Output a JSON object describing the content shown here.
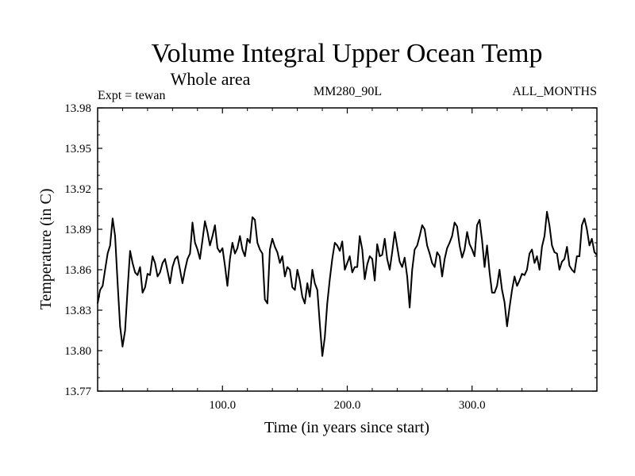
{
  "chart_data": {
    "type": "line",
    "title": "Volume Integral Upper Ocean Temp",
    "subtitle": "Whole area",
    "annotations": {
      "left": "Expt = tewan",
      "center": "MM280_90L",
      "right": "ALL_MONTHS"
    },
    "xlabel": "Time (in years since start)",
    "ylabel": "Temperature (in C)",
    "xlim": [
      0,
      400
    ],
    "ylim": [
      13.77,
      13.98
    ],
    "xticks": [
      100,
      200,
      300
    ],
    "xtick_labels": [
      "100.0",
      "200.0",
      "300.0"
    ],
    "yticks": [
      13.77,
      13.8,
      13.83,
      13.86,
      13.89,
      13.92,
      13.95,
      13.98
    ],
    "ytick_labels": [
      "13.77",
      "13.80",
      "13.83",
      "13.86",
      "13.89",
      "13.92",
      "13.95",
      "13.98"
    ],
    "grid": false,
    "series": [
      {
        "name": "tewan",
        "x": [
          0,
          2,
          4,
          6,
          8,
          10,
          12,
          14,
          16,
          18,
          20,
          22,
          24,
          26,
          28,
          30,
          32,
          34,
          36,
          38,
          40,
          42,
          44,
          46,
          48,
          50,
          52,
          54,
          56,
          58,
          60,
          62,
          64,
          66,
          68,
          70,
          72,
          74,
          76,
          78,
          80,
          82,
          84,
          86,
          88,
          90,
          92,
          94,
          96,
          98,
          100,
          102,
          104,
          106,
          108,
          110,
          112,
          114,
          116,
          118,
          120,
          122,
          124,
          126,
          128,
          130,
          132,
          134,
          136,
          138,
          140,
          142,
          144,
          146,
          148,
          150,
          152,
          154,
          156,
          158,
          160,
          162,
          164,
          166,
          168,
          170,
          172,
          174,
          176,
          178,
          180,
          182,
          184,
          186,
          188,
          190,
          192,
          194,
          196,
          198,
          200,
          202,
          204,
          206,
          208,
          210,
          212,
          214,
          216,
          218,
          220,
          222,
          224,
          226,
          228,
          230,
          232,
          234,
          236,
          238,
          240,
          242,
          244,
          246,
          248,
          250,
          252,
          254,
          256,
          258,
          260,
          262,
          264,
          266,
          268,
          270,
          272,
          274,
          276,
          278,
          280,
          282,
          284,
          286,
          288,
          290,
          292,
          294,
          296,
          298,
          300,
          302,
          304,
          306,
          308,
          310,
          312,
          314,
          316,
          318,
          320,
          322,
          324,
          326,
          328,
          330,
          332,
          334,
          336,
          338,
          340,
          342,
          344,
          346,
          348,
          350,
          352,
          354,
          356,
          358,
          360,
          362,
          364,
          366,
          368,
          370,
          372,
          374,
          376,
          378,
          380,
          382,
          384,
          386,
          388,
          390,
          392,
          394,
          396,
          398,
          400
        ],
        "values": [
          13.835,
          13.845,
          13.848,
          13.86,
          13.872,
          13.878,
          13.898,
          13.885,
          13.85,
          13.818,
          13.803,
          13.815,
          13.845,
          13.874,
          13.865,
          13.858,
          13.856,
          13.862,
          13.843,
          13.847,
          13.857,
          13.856,
          13.87,
          13.865,
          13.855,
          13.858,
          13.865,
          13.868,
          13.859,
          13.85,
          13.862,
          13.868,
          13.87,
          13.86,
          13.85,
          13.86,
          13.868,
          13.872,
          13.895,
          13.88,
          13.875,
          13.868,
          13.882,
          13.896,
          13.888,
          13.878,
          13.885,
          13.893,
          13.876,
          13.873,
          13.876,
          13.863,
          13.848,
          13.868,
          13.88,
          13.872,
          13.876,
          13.885,
          13.875,
          13.87,
          13.883,
          13.88,
          13.899,
          13.897,
          13.88,
          13.875,
          13.872,
          13.838,
          13.835,
          13.875,
          13.883,
          13.877,
          13.873,
          13.865,
          13.87,
          13.855,
          13.862,
          13.86,
          13.847,
          13.845,
          13.86,
          13.852,
          13.84,
          13.835,
          13.85,
          13.84,
          13.86,
          13.85,
          13.845,
          13.82,
          13.796,
          13.81,
          13.835,
          13.853,
          13.868,
          13.88,
          13.878,
          13.874,
          13.881,
          13.86,
          13.865,
          13.87,
          13.858,
          13.862,
          13.862,
          13.885,
          13.875,
          13.853,
          13.864,
          13.87,
          13.868,
          13.852,
          13.879,
          13.87,
          13.871,
          13.883,
          13.868,
          13.86,
          13.873,
          13.888,
          13.877,
          13.866,
          13.862,
          13.869,
          13.855,
          13.832,
          13.86,
          13.875,
          13.878,
          13.885,
          13.893,
          13.89,
          13.878,
          13.872,
          13.865,
          13.862,
          13.873,
          13.87,
          13.855,
          13.868,
          13.876,
          13.88,
          13.885,
          13.895,
          13.892,
          13.878,
          13.869,
          13.875,
          13.888,
          13.879,
          13.875,
          13.87,
          13.893,
          13.897,
          13.882,
          13.862,
          13.878,
          13.858,
          13.843,
          13.843,
          13.848,
          13.86,
          13.845,
          13.836,
          13.818,
          13.832,
          13.845,
          13.855,
          13.848,
          13.852,
          13.857,
          13.856,
          13.86,
          13.872,
          13.875,
          13.865,
          13.87,
          13.86,
          13.877,
          13.885,
          13.903,
          13.893,
          13.878,
          13.873,
          13.872,
          13.86,
          13.866,
          13.868,
          13.877,
          13.863,
          13.86,
          13.858,
          13.87,
          13.87,
          13.893,
          13.898,
          13.89,
          13.878,
          13.883,
          13.873,
          13.871
        ]
      }
    ]
  }
}
